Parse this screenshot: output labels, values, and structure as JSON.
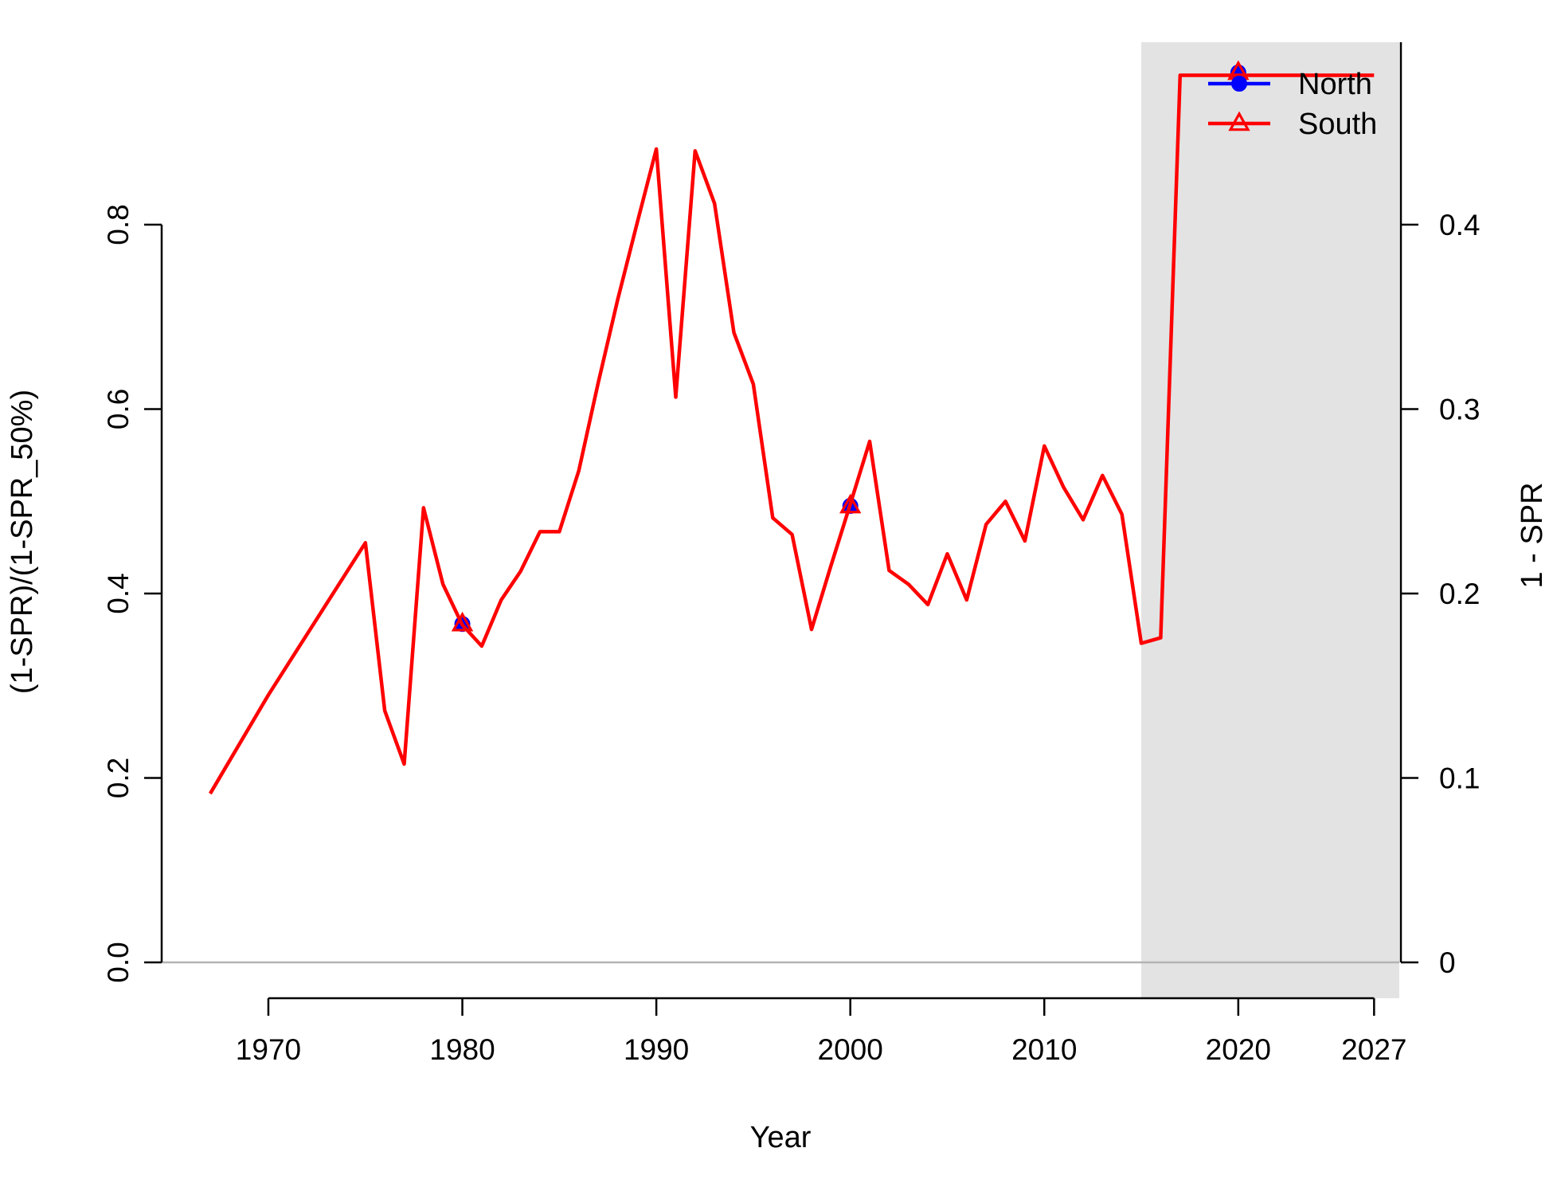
{
  "chart_data": {
    "type": "line",
    "title": "",
    "xlabel": "Year",
    "ylabel": "(1-SPR)/(1-SPR_50%)",
    "ylabel_right": "1 - SPR",
    "xlim": [
      1964.5,
      2028.3
    ],
    "ylim": [
      0,
      0.97
    ],
    "x_ticks": [
      1970,
      1980,
      1990,
      2000,
      2010,
      2020,
      2027
    ],
    "y_ticks": [
      0.0,
      0.2,
      0.4,
      0.6,
      0.8
    ],
    "y_ticks_right": [
      0,
      0.1,
      0.2,
      0.3,
      0.4
    ],
    "right_axis_scale": 0.5,
    "forecast_region": {
      "start": 2015,
      "end": 2028.3
    },
    "grid": false,
    "legend_position": "top-right",
    "legend": [
      {
        "name": "North",
        "color": "#0000ff",
        "marker": "circle"
      },
      {
        "name": "South",
        "color": "#ff0000",
        "marker": "triangle"
      }
    ],
    "series": [
      {
        "name": "North",
        "color": "#0000ff",
        "marker": "circle",
        "points": [
          [
            1980,
            0.367
          ],
          [
            2000,
            0.495
          ],
          [
            2020,
            0.965
          ]
        ]
      },
      {
        "name": "South",
        "color": "#ff0000",
        "marker": "triangle",
        "x": [
          1967,
          1970,
          1975,
          1976,
          1977,
          1978,
          1979,
          1980,
          1981,
          1982,
          1983,
          1984,
          1985,
          1986,
          1987,
          1988,
          1989,
          1990,
          1991,
          1992,
          1993,
          1994,
          1995,
          1996,
          1997,
          1998,
          1999,
          2000,
          2001,
          2002,
          2003,
          2004,
          2005,
          2006,
          2007,
          2008,
          2009,
          2010,
          2011,
          2012,
          2013,
          2014,
          2015,
          2016,
          2017,
          2018,
          2019,
          2020,
          2021,
          2022,
          2023,
          2024,
          2025,
          2026,
          2027
        ],
        "values": [
          0.183,
          0.29,
          0.455,
          0.273,
          0.215,
          0.493,
          0.41,
          0.366,
          0.343,
          0.393,
          0.424,
          0.467,
          0.467,
          0.533,
          0.628,
          0.718,
          0.801,
          0.882,
          0.613,
          0.88,
          0.823,
          0.683,
          0.627,
          0.482,
          0.464,
          0.361,
          0.43,
          0.497,
          0.565,
          0.425,
          0.41,
          0.388,
          0.443,
          0.393,
          0.475,
          0.5,
          0.457,
          0.56,
          0.515,
          0.48,
          0.528,
          0.486,
          0.346,
          0.352,
          0.962,
          0.962,
          0.962,
          0.962,
          0.962,
          0.962,
          0.962,
          0.962,
          0.962,
          0.962,
          0.962
        ],
        "marker_points": [
          [
            1980,
            0.367
          ],
          [
            2000,
            0.495
          ],
          [
            2020,
            0.965
          ]
        ]
      }
    ]
  }
}
